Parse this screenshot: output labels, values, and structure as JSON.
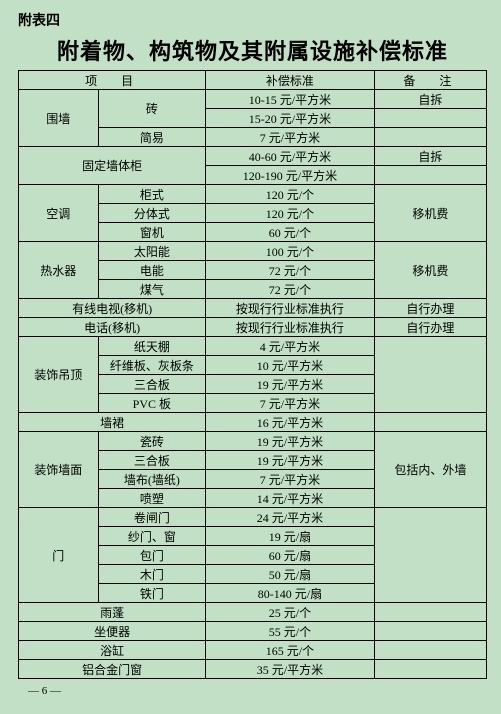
{
  "pre_title": "附表四",
  "title": "附着物、构筑物及其附属设施补偿标准",
  "headers": {
    "item": "项　目",
    "standard": "补偿标准",
    "remark": "备　注"
  },
  "rows": [
    {
      "cat": "围墙",
      "cat_rs": 3,
      "sub": "砖",
      "sub_cs": 1,
      "sub_rs": 2,
      "std": "10-15 元/平方米",
      "rem": "自拆",
      "rem_rs": 1
    },
    {
      "std": "15-20 元/平方米",
      "rem": "",
      "rem_rs": 1
    },
    {
      "sub": "简易",
      "sub_cs": 1,
      "std": "7 元/平方米",
      "rem": "",
      "rem_rs": 1
    },
    {
      "cat": "固定墙体柜",
      "cat_cs": 2,
      "cat_rs": 2,
      "std": "40-60 元/平方米",
      "rem": "自拆",
      "rem_rs": 1
    },
    {
      "std": "120-190 元/平方米",
      "rem": "",
      "rem_rs": 1
    },
    {
      "cat": "空调",
      "cat_rs": 3,
      "sub": "柜式",
      "sub_cs": 1,
      "std": "120 元/个",
      "rem": "移机费",
      "rem_rs": 3
    },
    {
      "sub": "分体式",
      "sub_cs": 1,
      "std": "120 元/个"
    },
    {
      "sub": "窗机",
      "sub_cs": 1,
      "std": "60 元/个"
    },
    {
      "cat": "热水器",
      "cat_rs": 3,
      "sub": "太阳能",
      "sub_cs": 1,
      "std": "100 元/个",
      "rem": "移机费",
      "rem_rs": 3
    },
    {
      "sub": "电能",
      "sub_cs": 1,
      "std": "72 元/个"
    },
    {
      "sub": "煤气",
      "sub_cs": 1,
      "std": "72 元/个"
    },
    {
      "cat": "有线电视(移机)",
      "cat_cs": 2,
      "std": "按现行行业标准执行",
      "rem": "自行办理",
      "rem_rs": 1
    },
    {
      "cat": "电话(移机)",
      "cat_cs": 2,
      "std": "按现行行业标准执行",
      "rem": "自行办理",
      "rem_rs": 1
    },
    {
      "cat": "装饰吊顶",
      "cat_rs": 4,
      "sub": "纸天棚",
      "sub_cs": 1,
      "std": "4 元/平方米",
      "rem": "",
      "rem_rs": 4
    },
    {
      "sub": "纤维板、灰板条",
      "sub_cs": 1,
      "std": "10 元/平方米"
    },
    {
      "sub": "三合板",
      "sub_cs": 1,
      "std": "19 元/平方米"
    },
    {
      "sub": "PVC 板",
      "sub_cs": 1,
      "std": "7 元/平方米"
    },
    {
      "cat": "墙裙",
      "cat_cs": 2,
      "std": "16 元/平方米",
      "rem": "",
      "rem_rs": 1
    },
    {
      "cat": "装饰墙面",
      "cat_rs": 4,
      "sub": "瓷砖",
      "sub_cs": 1,
      "std": "19 元/平方米",
      "rem": "包括内、外墙",
      "rem_rs": 4
    },
    {
      "sub": "三合板",
      "sub_cs": 1,
      "std": "19 元/平方米"
    },
    {
      "sub": "墙布(墙纸)",
      "sub_cs": 1,
      "std": "7 元/平方米"
    },
    {
      "sub": "喷塑",
      "sub_cs": 1,
      "std": "14 元/平方米"
    },
    {
      "cat": "门",
      "cat_rs": 5,
      "sub": "卷闸门",
      "sub_cs": 1,
      "std": "24 元/平方米",
      "rem": "",
      "rem_rs": 5
    },
    {
      "sub": "纱门、窗",
      "sub_cs": 1,
      "std": "19 元/扇"
    },
    {
      "sub": "包门",
      "sub_cs": 1,
      "std": "60 元/扇"
    },
    {
      "sub": "木门",
      "sub_cs": 1,
      "std": "50 元/扇"
    },
    {
      "sub": "铁门",
      "sub_cs": 1,
      "std": "80-140 元/扇"
    },
    {
      "cat": "雨蓬",
      "cat_cs": 2,
      "std": "25 元/个",
      "rem": "",
      "rem_rs": 1
    },
    {
      "cat": "坐便器",
      "cat_cs": 2,
      "std": "55 元/个",
      "rem": "",
      "rem_rs": 1
    },
    {
      "cat": "浴缸",
      "cat_cs": 2,
      "std": "165 元/个",
      "rem": "",
      "rem_rs": 1
    },
    {
      "cat": "铝合金门窗",
      "cat_cs": 2,
      "std": "35 元/平方米",
      "rem": "",
      "rem_rs": 1
    }
  ],
  "footer": "— 6 —"
}
